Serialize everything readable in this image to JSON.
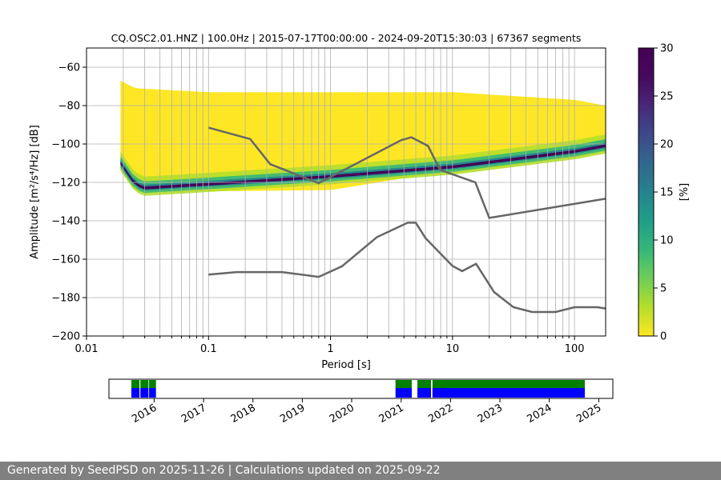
{
  "footer": {
    "generated_prefix": "Generated by SeedPSD on",
    "generated_date": "2025-11-26",
    "separator": "|",
    "updated_prefix": "Calculations updated on",
    "updated_date": "2025-09-22"
  },
  "chart_data": [
    {
      "type": "heatmap",
      "title": "CQ.OSC2.01.HNZ | 100.0Hz | 2015-07-17T00:00:00 - 2024-09-20T15:30:03 | 67367 segments",
      "xlabel": "Period [s]",
      "ylabel": "Amplitude [m²/s⁴/Hz] [dB]",
      "x_scale": "log",
      "xlim": [
        0.01,
        180
      ],
      "ylim": [
        -200,
        -50
      ],
      "x_ticks": [
        0.01,
        0.1,
        1,
        10,
        100
      ],
      "x_tick_labels": [
        "0.01",
        "0.1",
        "1",
        "10",
        "100"
      ],
      "y_ticks": [
        -200,
        -180,
        -160,
        -140,
        -120,
        -100,
        -80,
        -60
      ],
      "y_tick_labels": [
        "−200",
        "−180",
        "−160",
        "−140",
        "−120",
        "−100",
        "−80",
        "−60"
      ],
      "grid": true,
      "colormap": "viridis_r",
      "colorbar": {
        "label": "[%]",
        "range": [
          0,
          30
        ],
        "ticks": [
          0,
          5,
          10,
          15,
          20,
          25,
          30
        ],
        "tick_labels": [
          "0",
          "5",
          "10",
          "15",
          "20",
          "25",
          "30"
        ]
      },
      "psd_density": {
        "period_start": 0.019,
        "period_end": 180,
        "mode_curve": [
          [
            0.019,
            -110
          ],
          [
            0.025,
            -121
          ],
          [
            0.03,
            -123
          ],
          [
            0.1,
            -121
          ],
          [
            1,
            -117
          ],
          [
            10,
            -112
          ],
          [
            100,
            -104
          ],
          [
            180,
            -101
          ]
        ],
        "lower_edge": [
          [
            0.019,
            -113
          ],
          [
            0.025,
            -125
          ],
          [
            1,
            -124
          ],
          [
            6,
            -116
          ],
          [
            10,
            -115
          ],
          [
            100,
            -107
          ],
          [
            180,
            -104
          ]
        ],
        "upper_edge": [
          [
            0.019,
            -67
          ],
          [
            0.025,
            -71
          ],
          [
            0.1,
            -73
          ],
          [
            10,
            -73
          ],
          [
            100,
            -77
          ],
          [
            180,
            -80
          ]
        ],
        "color_low": "#fde725",
        "color_high": "#440154"
      },
      "series": [
        {
          "name": "",
          "color": "#666666",
          "points": [
            [
              0.1,
              -91.5
            ],
            [
              0.22,
              -97.4
            ],
            [
              0.32,
              -110.5
            ],
            [
              0.8,
              -120.4
            ],
            [
              3.8,
              -98.0
            ],
            [
              4.6,
              -96.5
            ],
            [
              6.3,
              -101.0
            ],
            [
              7.9,
              -113.5
            ],
            [
              15.4,
              -120.0
            ],
            [
              20,
              -138.5
            ],
            [
              180,
              -128.5
            ]
          ]
        },
        {
          "name": "",
          "color": "#666666",
          "points": [
            [
              0.1,
              -168.0
            ],
            [
              0.17,
              -166.7
            ],
            [
              0.4,
              -166.7
            ],
            [
              0.8,
              -169.2
            ],
            [
              1.24,
              -163.7
            ],
            [
              2.4,
              -148.5
            ],
            [
              4.3,
              -141.0
            ],
            [
              5.0,
              -141.0
            ],
            [
              6.0,
              -149.0
            ],
            [
              10,
              -163.5
            ],
            [
              12,
              -166.2
            ],
            [
              15.6,
              -162.4
            ],
            [
              21.9,
              -177.1
            ],
            [
              31.6,
              -185.0
            ],
            [
              45,
              -187.5
            ],
            [
              70,
              -187.5
            ],
            [
              100,
              -185.0
            ],
            [
              154,
              -185.0
            ],
            [
              180,
              -185.7
            ]
          ]
        }
      ]
    },
    {
      "type": "bar",
      "title": "",
      "x_ticks": [
        "2016",
        "2017",
        "2018",
        "2019",
        "2020",
        "2021",
        "2022",
        "2023",
        "2024",
        "2025"
      ],
      "xlim": [
        "2015-07-17",
        "2025-07-01"
      ],
      "series": [
        {
          "name": "",
          "color": "#008000",
          "intervals": [
            [
              "2015-07-17",
              "2015-09-15"
            ],
            [
              "2015-09-22",
              "2015-11-20"
            ],
            [
              "2015-11-25",
              "2016-01-15"
            ],
            [
              "2020-11-20",
              "2021-03-20"
            ],
            [
              "2021-05-01",
              "2021-08-10"
            ],
            [
              "2021-08-20",
              "2024-09-20"
            ]
          ]
        },
        {
          "name": "",
          "color": "#0000ff",
          "intervals": [
            [
              "2015-07-17",
              "2015-09-15"
            ],
            [
              "2015-09-22",
              "2015-11-20"
            ],
            [
              "2015-11-25",
              "2016-01-15"
            ],
            [
              "2020-11-20",
              "2021-03-20"
            ],
            [
              "2021-05-01",
              "2021-08-10"
            ],
            [
              "2021-08-20",
              "2024-09-20"
            ]
          ]
        }
      ]
    }
  ]
}
